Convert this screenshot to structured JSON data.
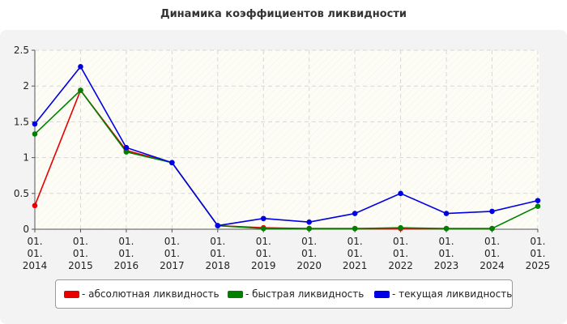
{
  "chart_data": {
    "type": "line",
    "title": "Динамика коэффициентов ликвидности",
    "categories": [
      {
        "top": "01.",
        "mid": "01.",
        "year": "2014"
      },
      {
        "top": "01.",
        "mid": "01.",
        "year": "2015"
      },
      {
        "top": "01.",
        "mid": "01.",
        "year": "2016"
      },
      {
        "top": "01.",
        "mid": "01.",
        "year": "2017"
      },
      {
        "top": "01.",
        "mid": "01.",
        "year": "2018"
      },
      {
        "top": "01.",
        "mid": "01.",
        "year": "2019"
      },
      {
        "top": "01.",
        "mid": "01.",
        "year": "2020"
      },
      {
        "top": "01.",
        "mid": "01.",
        "year": "2021"
      },
      {
        "top": "01.",
        "mid": "01.",
        "year": "2022"
      },
      {
        "top": "01.",
        "mid": "01.",
        "year": "2023"
      },
      {
        "top": "01.",
        "mid": "01.",
        "year": "2024"
      },
      {
        "top": "01.",
        "mid": "01.",
        "year": "2025"
      }
    ],
    "ylim": [
      0,
      2.5
    ],
    "yticks": [
      "0",
      "0.5",
      "1",
      "1.5",
      "2",
      "2.5"
    ],
    "grid": true,
    "legend_position": "bottom",
    "series": [
      {
        "name": "- абсолютная ликвидность",
        "color": "#e60000",
        "values": [
          0.33,
          1.94,
          1.1,
          0.93,
          0.05,
          0.02,
          0.01,
          0.01,
          0.01,
          0.01,
          0.01,
          null
        ]
      },
      {
        "name": "- быстрая ликвидность",
        "color": "#008000",
        "values": [
          1.33,
          1.94,
          1.08,
          0.93,
          0.05,
          0.01,
          0.01,
          0.01,
          0.02,
          0.01,
          0.01,
          0.32
        ]
      },
      {
        "name": "- текущая ликвидность",
        "color": "#0000e6",
        "values": [
          1.47,
          2.27,
          1.14,
          0.93,
          0.05,
          0.15,
          0.1,
          0.22,
          0.5,
          0.22,
          0.25,
          0.4
        ]
      }
    ]
  }
}
